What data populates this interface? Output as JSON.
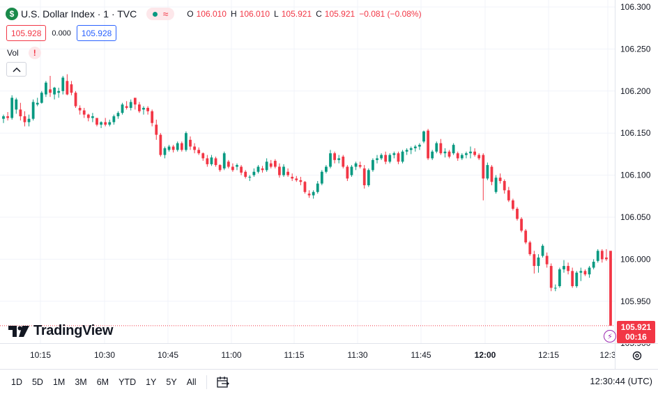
{
  "header": {
    "symbol_badge": "$",
    "title": "U.S. Dollar Index · 1 · TVC",
    "status_wave": "≈",
    "ohlc": [
      {
        "key": "O",
        "value": "106.010"
      },
      {
        "key": "H",
        "value": "106.010"
      },
      {
        "key": "L",
        "value": "105.921"
      },
      {
        "key": "C",
        "value": "105.921"
      }
    ],
    "change": "−0.081 (−0.08%)"
  },
  "trade": {
    "sell_price": "105.928",
    "spread": "0.000",
    "buy_price": "105.928"
  },
  "indicator": {
    "label": "Vol",
    "warning": "!",
    "collapse_icon": "chevron-up-icon"
  },
  "brand": {
    "name": "TradingView"
  },
  "price_axis": {
    "last_price": "105.921",
    "countdown": "00:16"
  },
  "bottom_bar": {
    "ranges": [
      "1D",
      "5D",
      "1M",
      "3M",
      "6M",
      "YTD",
      "1Y",
      "5Y",
      "All"
    ],
    "clock": "12:30:44 (UTC)"
  },
  "colors": {
    "up": "#089981",
    "down": "#f23645",
    "grid": "#f0f3fa"
  },
  "chart_data": {
    "type": "candlestick",
    "ylim": [
      105.9,
      106.3
    ],
    "yticks": [
      "106.300",
      "106.250",
      "106.200",
      "106.150",
      "106.100",
      "106.050",
      "106.000",
      "105.950",
      "105.900"
    ],
    "xticks": [
      "10:15",
      "10:30",
      "10:45",
      "11:00",
      "11:15",
      "11:30",
      "11:45",
      "12:00",
      "12:15",
      "12:3"
    ],
    "grid": true,
    "candles": [
      {
        "o": 106.167,
        "h": 106.172,
        "l": 106.162,
        "c": 106.17
      },
      {
        "o": 106.17,
        "h": 106.175,
        "l": 106.165,
        "c": 106.168
      },
      {
        "o": 106.168,
        "h": 106.195,
        "l": 106.166,
        "c": 106.192
      },
      {
        "o": 106.178,
        "h": 106.192,
        "l": 106.173,
        "c": 106.19
      },
      {
        "o": 106.178,
        "h": 106.186,
        "l": 106.165,
        "c": 106.17
      },
      {
        "o": 106.17,
        "h": 106.176,
        "l": 106.158,
        "c": 106.163
      },
      {
        "o": 106.163,
        "h": 106.172,
        "l": 106.158,
        "c": 106.167
      },
      {
        "o": 106.167,
        "h": 106.19,
        "l": 106.165,
        "c": 106.187
      },
      {
        "o": 106.184,
        "h": 106.192,
        "l": 106.182,
        "c": 106.186
      },
      {
        "o": 106.186,
        "h": 106.2,
        "l": 106.185,
        "c": 106.198
      },
      {
        "o": 106.196,
        "h": 106.212,
        "l": 106.193,
        "c": 106.21
      },
      {
        "o": 106.202,
        "h": 106.218,
        "l": 106.193,
        "c": 106.198
      },
      {
        "o": 106.196,
        "h": 106.205,
        "l": 106.19,
        "c": 106.204
      },
      {
        "o": 106.198,
        "h": 106.204,
        "l": 106.192,
        "c": 106.2
      },
      {
        "o": 106.2,
        "h": 106.218,
        "l": 106.196,
        "c": 106.216
      },
      {
        "o": 106.212,
        "h": 106.22,
        "l": 106.195,
        "c": 106.196
      },
      {
        "o": 106.208,
        "h": 106.212,
        "l": 106.195,
        "c": 106.198
      },
      {
        "o": 106.198,
        "h": 106.2,
        "l": 106.18,
        "c": 106.182
      },
      {
        "o": 106.18,
        "h": 106.183,
        "l": 106.172,
        "c": 106.177
      },
      {
        "o": 106.177,
        "h": 106.18,
        "l": 106.168,
        "c": 106.172
      },
      {
        "o": 106.172,
        "h": 106.173,
        "l": 106.164,
        "c": 106.168
      },
      {
        "o": 106.168,
        "h": 106.174,
        "l": 106.163,
        "c": 106.17
      },
      {
        "o": 106.168,
        "h": 106.168,
        "l": 106.158,
        "c": 106.16
      },
      {
        "o": 106.16,
        "h": 106.164,
        "l": 106.156,
        "c": 106.163
      },
      {
        "o": 106.163,
        "h": 106.168,
        "l": 106.158,
        "c": 106.16
      },
      {
        "o": 106.16,
        "h": 106.166,
        "l": 106.158,
        "c": 106.163
      },
      {
        "o": 106.163,
        "h": 106.172,
        "l": 106.16,
        "c": 106.17
      },
      {
        "o": 106.17,
        "h": 106.176,
        "l": 106.167,
        "c": 106.174
      },
      {
        "o": 106.174,
        "h": 106.186,
        "l": 106.172,
        "c": 106.184
      },
      {
        "o": 106.182,
        "h": 106.188,
        "l": 106.178,
        "c": 106.18
      },
      {
        "o": 106.18,
        "h": 106.19,
        "l": 106.177,
        "c": 106.187
      },
      {
        "o": 106.192,
        "h": 106.192,
        "l": 106.178,
        "c": 106.184
      },
      {
        "o": 106.184,
        "h": 106.187,
        "l": 106.174,
        "c": 106.176
      },
      {
        "o": 106.178,
        "h": 106.182,
        "l": 106.172,
        "c": 106.18
      },
      {
        "o": 106.18,
        "h": 106.182,
        "l": 106.172,
        "c": 106.176
      },
      {
        "o": 106.176,
        "h": 106.178,
        "l": 106.158,
        "c": 106.162
      },
      {
        "o": 106.16,
        "h": 106.166,
        "l": 106.142,
        "c": 106.148
      },
      {
        "o": 106.148,
        "h": 106.15,
        "l": 106.122,
        "c": 106.124
      },
      {
        "o": 106.124,
        "h": 106.134,
        "l": 106.12,
        "c": 106.132
      },
      {
        "o": 106.13,
        "h": 106.136,
        "l": 106.128,
        "c": 106.134
      },
      {
        "o": 106.134,
        "h": 106.136,
        "l": 106.127,
        "c": 106.13
      },
      {
        "o": 106.13,
        "h": 106.14,
        "l": 106.128,
        "c": 106.138
      },
      {
        "o": 106.138,
        "h": 106.14,
        "l": 106.128,
        "c": 106.13
      },
      {
        "o": 106.13,
        "h": 106.152,
        "l": 106.128,
        "c": 106.15
      },
      {
        "o": 106.142,
        "h": 106.146,
        "l": 106.13,
        "c": 106.134
      },
      {
        "o": 106.134,
        "h": 106.138,
        "l": 106.126,
        "c": 106.13
      },
      {
        "o": 106.13,
        "h": 106.133,
        "l": 106.124,
        "c": 106.126
      },
      {
        "o": 106.126,
        "h": 106.127,
        "l": 106.117,
        "c": 106.12
      },
      {
        "o": 106.12,
        "h": 106.124,
        "l": 106.11,
        "c": 106.113
      },
      {
        "o": 106.113,
        "h": 106.124,
        "l": 106.111,
        "c": 106.121
      },
      {
        "o": 106.12,
        "h": 106.122,
        "l": 106.11,
        "c": 106.112
      },
      {
        "o": 106.112,
        "h": 106.113,
        "l": 106.104,
        "c": 106.106
      },
      {
        "o": 106.108,
        "h": 106.128,
        "l": 106.106,
        "c": 106.126
      },
      {
        "o": 106.116,
        "h": 106.118,
        "l": 106.108,
        "c": 106.11
      },
      {
        "o": 106.11,
        "h": 106.114,
        "l": 106.104,
        "c": 106.106
      },
      {
        "o": 106.11,
        "h": 106.114,
        "l": 106.106,
        "c": 106.112
      },
      {
        "o": 106.11,
        "h": 106.112,
        "l": 106.1,
        "c": 106.103
      },
      {
        "o": 106.104,
        "h": 106.106,
        "l": 106.096,
        "c": 106.098
      },
      {
        "o": 106.098,
        "h": 106.1,
        "l": 106.093,
        "c": 106.098
      },
      {
        "o": 106.1,
        "h": 106.108,
        "l": 106.098,
        "c": 106.104
      },
      {
        "o": 106.104,
        "h": 106.112,
        "l": 106.102,
        "c": 106.11
      },
      {
        "o": 106.108,
        "h": 106.111,
        "l": 106.103,
        "c": 106.106
      },
      {
        "o": 106.106,
        "h": 106.12,
        "l": 106.104,
        "c": 106.116
      },
      {
        "o": 106.114,
        "h": 106.118,
        "l": 106.108,
        "c": 106.11
      },
      {
        "o": 106.117,
        "h": 106.119,
        "l": 106.108,
        "c": 106.11
      },
      {
        "o": 106.11,
        "h": 106.114,
        "l": 106.097,
        "c": 106.1
      },
      {
        "o": 106.1,
        "h": 106.113,
        "l": 106.098,
        "c": 106.11
      },
      {
        "o": 106.104,
        "h": 106.108,
        "l": 106.098,
        "c": 106.1
      },
      {
        "o": 106.098,
        "h": 106.102,
        "l": 106.093,
        "c": 106.096
      },
      {
        "o": 106.096,
        "h": 106.099,
        "l": 106.092,
        "c": 106.094
      },
      {
        "o": 106.094,
        "h": 106.098,
        "l": 106.088,
        "c": 106.092
      },
      {
        "o": 106.092,
        "h": 106.093,
        "l": 106.078,
        "c": 106.08
      },
      {
        "o": 106.078,
        "h": 106.082,
        "l": 106.073,
        "c": 106.076
      },
      {
        "o": 106.076,
        "h": 106.082,
        "l": 106.072,
        "c": 106.08
      },
      {
        "o": 106.08,
        "h": 106.093,
        "l": 106.078,
        "c": 106.09
      },
      {
        "o": 106.09,
        "h": 106.106,
        "l": 106.088,
        "c": 106.104
      },
      {
        "o": 106.104,
        "h": 106.112,
        "l": 106.102,
        "c": 106.11
      },
      {
        "o": 106.11,
        "h": 106.13,
        "l": 106.108,
        "c": 106.126
      },
      {
        "o": 106.126,
        "h": 106.128,
        "l": 106.114,
        "c": 106.118
      },
      {
        "o": 106.118,
        "h": 106.124,
        "l": 106.114,
        "c": 106.12
      },
      {
        "o": 106.122,
        "h": 106.124,
        "l": 106.108,
        "c": 106.11
      },
      {
        "o": 106.11,
        "h": 106.112,
        "l": 106.093,
        "c": 106.096
      },
      {
        "o": 106.1,
        "h": 106.112,
        "l": 106.098,
        "c": 106.11
      },
      {
        "o": 106.11,
        "h": 106.116,
        "l": 106.106,
        "c": 106.114
      },
      {
        "o": 106.112,
        "h": 106.116,
        "l": 106.108,
        "c": 106.11
      },
      {
        "o": 106.108,
        "h": 106.112,
        "l": 106.084,
        "c": 106.088
      },
      {
        "o": 106.088,
        "h": 106.108,
        "l": 106.086,
        "c": 106.106
      },
      {
        "o": 106.106,
        "h": 106.12,
        "l": 106.104,
        "c": 106.118
      },
      {
        "o": 106.118,
        "h": 106.124,
        "l": 106.114,
        "c": 106.12
      },
      {
        "o": 106.12,
        "h": 106.126,
        "l": 106.118,
        "c": 106.124
      },
      {
        "o": 106.124,
        "h": 106.128,
        "l": 106.113,
        "c": 106.116
      },
      {
        "o": 106.116,
        "h": 106.126,
        "l": 106.114,
        "c": 106.124
      },
      {
        "o": 106.124,
        "h": 106.128,
        "l": 106.12,
        "c": 106.126
      },
      {
        "o": 106.126,
        "h": 106.128,
        "l": 106.113,
        "c": 106.116
      },
      {
        "o": 106.116,
        "h": 106.13,
        "l": 106.114,
        "c": 106.128
      },
      {
        "o": 106.128,
        "h": 106.132,
        "l": 106.124,
        "c": 106.13
      },
      {
        "o": 106.13,
        "h": 106.134,
        "l": 106.125,
        "c": 106.132
      },
      {
        "o": 106.132,
        "h": 106.136,
        "l": 106.128,
        "c": 106.134
      },
      {
        "o": 106.134,
        "h": 106.138,
        "l": 106.13,
        "c": 106.136
      },
      {
        "o": 106.14,
        "h": 106.153,
        "l": 106.138,
        "c": 106.152
      },
      {
        "o": 106.153,
        "h": 106.155,
        "l": 106.118,
        "c": 106.12
      },
      {
        "o": 106.12,
        "h": 106.13,
        "l": 106.118,
        "c": 106.128
      },
      {
        "o": 106.128,
        "h": 106.14,
        "l": 106.126,
        "c": 106.138
      },
      {
        "o": 106.138,
        "h": 106.143,
        "l": 106.124,
        "c": 106.126
      },
      {
        "o": 106.126,
        "h": 106.132,
        "l": 106.121,
        "c": 106.128
      },
      {
        "o": 106.128,
        "h": 106.13,
        "l": 106.12,
        "c": 106.122
      },
      {
        "o": 106.126,
        "h": 106.138,
        "l": 106.124,
        "c": 106.136
      },
      {
        "o": 106.126,
        "h": 106.128,
        "l": 106.117,
        "c": 106.12
      },
      {
        "o": 106.12,
        "h": 106.126,
        "l": 106.118,
        "c": 106.124
      },
      {
        "o": 106.124,
        "h": 106.128,
        "l": 106.12,
        "c": 106.126
      },
      {
        "o": 106.126,
        "h": 106.134,
        "l": 106.12,
        "c": 106.128
      },
      {
        "o": 106.128,
        "h": 106.132,
        "l": 106.122,
        "c": 106.124
      },
      {
        "o": 106.124,
        "h": 106.126,
        "l": 106.118,
        "c": 106.12
      },
      {
        "o": 106.124,
        "h": 106.126,
        "l": 106.07,
        "c": 106.096
      },
      {
        "o": 106.096,
        "h": 106.115,
        "l": 106.094,
        "c": 106.112
      },
      {
        "o": 106.11,
        "h": 106.112,
        "l": 106.088,
        "c": 106.092
      },
      {
        "o": 106.08,
        "h": 106.1,
        "l": 106.078,
        "c": 106.097
      },
      {
        "o": 106.097,
        "h": 106.102,
        "l": 106.09,
        "c": 106.093
      },
      {
        "o": 106.093,
        "h": 106.095,
        "l": 106.078,
        "c": 106.082
      },
      {
        "o": 106.082,
        "h": 106.086,
        "l": 106.068,
        "c": 106.07
      },
      {
        "o": 106.07,
        "h": 106.072,
        "l": 106.058,
        "c": 106.06
      },
      {
        "o": 106.06,
        "h": 106.062,
        "l": 106.046,
        "c": 106.048
      },
      {
        "o": 106.048,
        "h": 106.05,
        "l": 106.032,
        "c": 106.034
      },
      {
        "o": 106.034,
        "h": 106.036,
        "l": 106.018,
        "c": 106.02
      },
      {
        "o": 106.02,
        "h": 106.022,
        "l": 106.004,
        "c": 106.006
      },
      {
        "o": 106.006,
        "h": 106.01,
        "l": 105.983,
        "c": 105.992
      },
      {
        "o": 105.992,
        "h": 106.006,
        "l": 105.984,
        "c": 106.002
      },
      {
        "o": 106.004,
        "h": 106.018,
        "l": 106.002,
        "c": 106.016
      },
      {
        "o": 106.004,
        "h": 106.008,
        "l": 105.99,
        "c": 105.994
      },
      {
        "o": 105.992,
        "h": 105.995,
        "l": 105.962,
        "c": 105.966
      },
      {
        "o": 105.966,
        "h": 105.97,
        "l": 105.962,
        "c": 105.966
      },
      {
        "o": 105.968,
        "h": 105.99,
        "l": 105.966,
        "c": 105.988
      },
      {
        "o": 105.988,
        "h": 105.999,
        "l": 105.984,
        "c": 105.992
      },
      {
        "o": 105.992,
        "h": 105.996,
        "l": 105.982,
        "c": 105.986
      },
      {
        "o": 105.986,
        "h": 105.99,
        "l": 105.966,
        "c": 105.968
      },
      {
        "o": 105.968,
        "h": 105.986,
        "l": 105.966,
        "c": 105.984
      },
      {
        "o": 105.984,
        "h": 105.99,
        "l": 105.974,
        "c": 105.986
      },
      {
        "o": 105.986,
        "h": 105.988,
        "l": 105.98,
        "c": 105.982
      },
      {
        "o": 105.982,
        "h": 105.992,
        "l": 105.978,
        "c": 105.99
      },
      {
        "o": 105.99,
        "h": 106.0,
        "l": 105.988,
        "c": 105.997
      },
      {
        "o": 105.998,
        "h": 106.012,
        "l": 105.996,
        "c": 106.01
      },
      {
        "o": 106.01,
        "h": 106.012,
        "l": 105.996,
        "c": 106.0
      },
      {
        "o": 106.002,
        "h": 106.012,
        "l": 105.998,
        "c": 106.0
      },
      {
        "o": 106.01,
        "h": 106.01,
        "l": 105.921,
        "c": 105.921
      }
    ]
  }
}
